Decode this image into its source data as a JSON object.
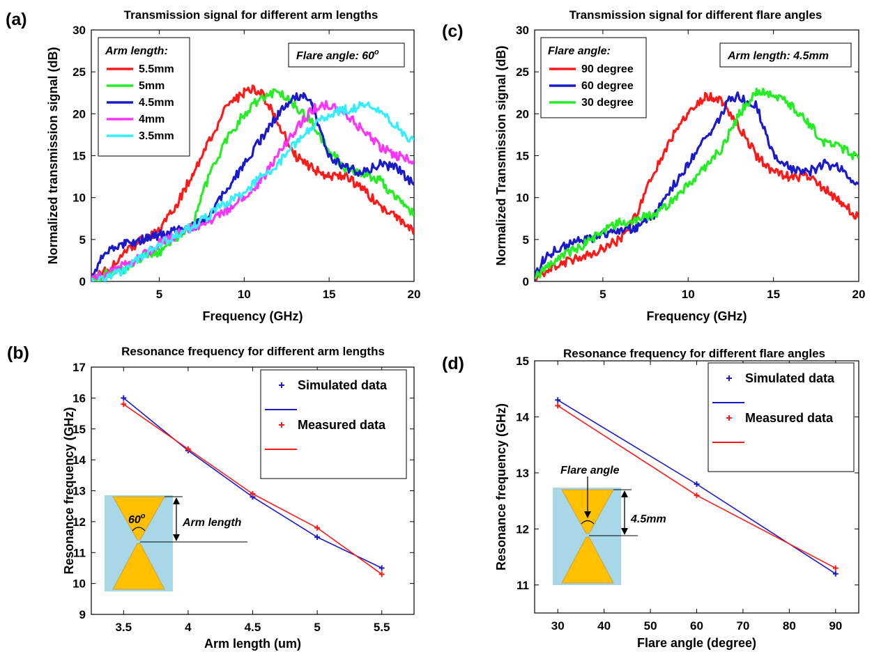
{
  "panel_labels": [
    "(a)",
    "(b)",
    "(c)",
    "(d)"
  ],
  "insets": {
    "a_note": "Flare angle: 60",
    "a_note_sup": "o",
    "c_note": "Arm length: 4.5mm",
    "b_angle": "60",
    "b_angle_sup": "o",
    "b_arm": "Arm length",
    "d_flare": "Flare angle",
    "d_arm": "4.5mm"
  },
  "colors": {
    "red": "#ff1a1a",
    "green": "#22ee22",
    "blue": "#1a1acc",
    "magenta": "#ff33ff",
    "cyan": "#33eeff",
    "inset_bg": "#a8d8e8",
    "inset_fill": "#ffc000"
  },
  "chart_data": [
    {
      "type": "line",
      "title": "Transmission signal for different arm lengths",
      "xlabel": "Frequency (GHz)",
      "ylabel": "Normalized transmission signal (dB)",
      "xlim": [
        1,
        20
      ],
      "ylim": [
        0,
        30
      ],
      "xticks": [
        5,
        10,
        15,
        20
      ],
      "yticks": [
        0,
        5,
        10,
        15,
        20,
        25,
        30
      ],
      "legend_title": "Arm length:",
      "legend_position": "top-left",
      "grid": false,
      "series": [
        {
          "name": "5.5mm",
          "color": "#ff1a1a",
          "x": [
            1,
            2,
            3,
            4,
            5,
            6,
            7,
            8,
            9,
            10,
            10.5,
            11,
            12,
            13,
            14,
            15,
            16,
            17,
            18,
            19,
            20
          ],
          "y": [
            0.5,
            1.5,
            3.5,
            5,
            6,
            9,
            13,
            17,
            21,
            22.5,
            23,
            22.5,
            19,
            15,
            13.5,
            12.5,
            12.5,
            11,
            9,
            7.5,
            6
          ]
        },
        {
          "name": "5mm",
          "color": "#22ee22",
          "x": [
            1,
            2,
            3,
            4,
            5,
            6,
            7,
            8,
            9,
            10,
            11,
            12,
            12.5,
            13,
            14,
            15,
            16,
            17,
            18,
            19,
            20
          ],
          "y": [
            0,
            1,
            1.5,
            3,
            3.5,
            5,
            7,
            13,
            17,
            20,
            22,
            22.5,
            22,
            21,
            19,
            15.5,
            13.5,
            13,
            12,
            10,
            8
          ]
        },
        {
          "name": "4.5mm",
          "color": "#1a1acc",
          "x": [
            1,
            1.5,
            2,
            3,
            4,
            5,
            6,
            7,
            8,
            9,
            10,
            11,
            12,
            13,
            13.5,
            14,
            15,
            16,
            17,
            18,
            19,
            20
          ],
          "y": [
            0.5,
            2.5,
            3.5,
            4.5,
            5,
            5.5,
            6,
            6.5,
            8,
            11,
            14,
            17,
            20,
            22,
            22,
            21,
            15,
            13.5,
            13,
            14,
            13.5,
            11.5
          ]
        },
        {
          "name": "4mm",
          "color": "#ff33ff",
          "x": [
            1,
            2,
            3,
            4,
            5,
            6,
            7,
            8,
            9,
            10,
            11,
            12,
            13,
            14,
            14.5,
            15,
            16,
            17,
            18,
            19,
            20
          ],
          "y": [
            0,
            1,
            2,
            3,
            4.5,
            5.5,
            6.5,
            7,
            8.5,
            10,
            12,
            15,
            18,
            20.5,
            21,
            21,
            20,
            18,
            16,
            15,
            14.5
          ]
        },
        {
          "name": "3.5mm",
          "color": "#33eeff",
          "x": [
            1,
            2,
            3,
            4,
            5,
            6,
            7,
            8,
            9,
            10,
            11,
            12,
            13,
            14,
            15,
            16,
            17,
            18,
            19,
            20
          ],
          "y": [
            0,
            0.5,
            1.5,
            3,
            4.5,
            5.5,
            6.5,
            8,
            9.5,
            10.5,
            12.5,
            14,
            16.5,
            18.5,
            20,
            20.5,
            21,
            20.5,
            18.5,
            16.5
          ]
        }
      ]
    },
    {
      "type": "line",
      "title": "Resonance frequency for different arm lengths",
      "xlabel": "Arm length (um)",
      "ylabel": "Resonance frequency (GHz)",
      "xlim": [
        3.25,
        5.75
      ],
      "ylim": [
        9,
        17
      ],
      "xticks": [
        3.5,
        4,
        4.5,
        5,
        5.5
      ],
      "yticks": [
        9,
        10,
        11,
        12,
        13,
        14,
        15,
        16,
        17
      ],
      "legend_position": "top-right",
      "grid": false,
      "series": [
        {
          "name": "Simulated data",
          "color": "#1a1acc",
          "x": [
            3.5,
            4,
            4.5,
            5,
            5.5
          ],
          "y": [
            16.0,
            14.3,
            12.8,
            11.5,
            10.5
          ]
        },
        {
          "name": "Measured data",
          "color": "#ff1a1a",
          "x": [
            3.5,
            4,
            4.5,
            5,
            5.5
          ],
          "y": [
            15.8,
            14.35,
            12.9,
            11.8,
            10.3
          ]
        }
      ]
    },
    {
      "type": "line",
      "title": "Transmission signal for different flare angles",
      "xlabel": "Frequency (GHz)",
      "ylabel": "Normalized Transmission signal (dB)",
      "xlim": [
        1,
        20
      ],
      "ylim": [
        0,
        30
      ],
      "xticks": [
        5,
        10,
        15,
        20
      ],
      "yticks": [
        0,
        5,
        10,
        15,
        20,
        25,
        30
      ],
      "legend_title": "Flare angle:",
      "legend_position": "top-left",
      "grid": false,
      "series": [
        {
          "name": "90 degree",
          "color": "#ff1a1a",
          "x": [
            1,
            2,
            3,
            4,
            5,
            6,
            7,
            8,
            9,
            10,
            11,
            11.5,
            12,
            13,
            14,
            15,
            16,
            17,
            18,
            19,
            20
          ],
          "y": [
            0.5,
            1.5,
            2.5,
            3,
            4,
            5,
            8,
            13,
            17,
            20,
            22,
            22,
            21.5,
            18.5,
            15,
            13,
            12.5,
            12.5,
            11,
            9.5,
            7.5
          ]
        },
        {
          "name": "60 degree",
          "color": "#1a1acc",
          "x": [
            1,
            1.5,
            2,
            3,
            4,
            5,
            6,
            7,
            8,
            9,
            10,
            11,
            12,
            12.5,
            13,
            14,
            15,
            16,
            17,
            18,
            19,
            20
          ],
          "y": [
            0.5,
            2.5,
            3.5,
            4.5,
            5,
            5.5,
            6,
            6.5,
            8,
            11,
            14,
            17,
            20,
            22,
            22,
            21,
            15,
            13.5,
            13,
            14,
            13.5,
            11.5
          ]
        },
        {
          "name": "30 degree",
          "color": "#22ee22",
          "x": [
            1,
            2,
            3,
            4,
            5,
            6,
            7,
            8,
            9,
            10,
            11,
            12,
            13,
            14,
            15,
            16,
            17,
            18,
            19,
            20
          ],
          "y": [
            0.5,
            2,
            3.5,
            4.5,
            6,
            7,
            7.5,
            8,
            9.5,
            11.5,
            13.5,
            16,
            20,
            22.5,
            22.5,
            21,
            19,
            16.5,
            16,
            14.5
          ]
        }
      ]
    },
    {
      "type": "line",
      "title": "Resonance frequency for different flare angles",
      "xlabel": "Flare angle (degree)",
      "ylabel": "Resonance frequency (GHz)",
      "xlim": [
        25,
        95
      ],
      "ylim": [
        10.5,
        15
      ],
      "xticks": [
        30,
        40,
        50,
        60,
        70,
        80,
        90
      ],
      "yticks": [
        11,
        12,
        13,
        14,
        15
      ],
      "legend_position": "top-right",
      "grid": false,
      "series": [
        {
          "name": "Simulated data",
          "color": "#1a1acc",
          "x": [
            30,
            60,
            90
          ],
          "y": [
            14.3,
            12.8,
            11.2
          ]
        },
        {
          "name": "Measured data",
          "color": "#ff1a1a",
          "x": [
            30,
            60,
            90
          ],
          "y": [
            14.2,
            12.6,
            11.3
          ]
        }
      ]
    }
  ]
}
